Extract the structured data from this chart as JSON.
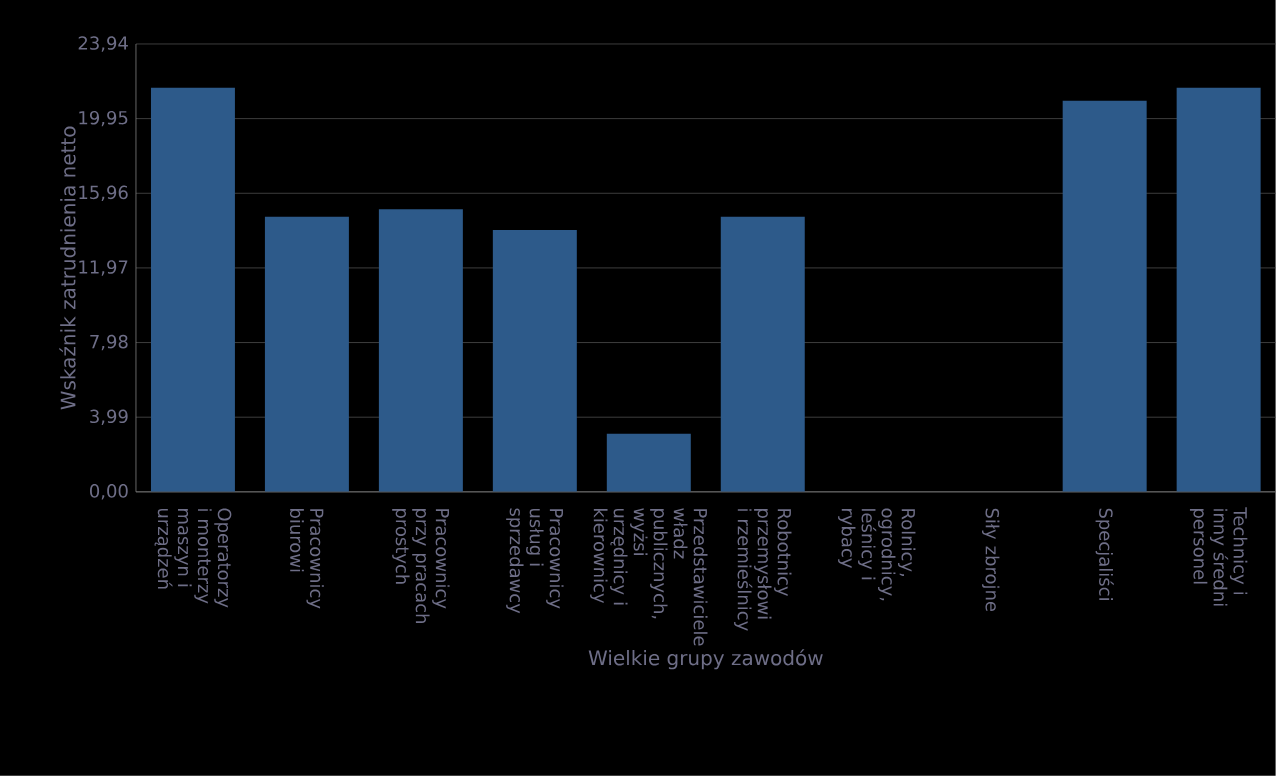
{
  "chart_data": {
    "type": "bar",
    "xlabel": "Wielkie grupy zawodów",
    "ylabel": "Wskaźnik zatrudnienia netto",
    "categories": [
      "Operatorzy i monterzy maszyn i urządzeń",
      "Pracownicy biurowi",
      "Pracownicy przy pracach prostych",
      "Pracownicy usług i sprzedawcy",
      "Przedstawiciele władz publicznych, wyżsi urzędnicy i kierownicy",
      "Robotnicy przemysłowi i rzemieślnicy",
      "Rolnicy, ogrodnicy, leśnicy i rybacy",
      "Siły zbrojne",
      "Specjaliści",
      "Technicy i inny średni personel"
    ],
    "values": [
      21.6,
      14.7,
      15.1,
      14.0,
      3.1,
      14.7,
      0,
      0,
      20.9,
      21.6
    ],
    "color": "#2d5a8a",
    "ylim": [
      0,
      23.94
    ],
    "yticks": [
      {
        "value": 0,
        "label": "0,00"
      },
      {
        "value": 3.99,
        "label": "3,99"
      },
      {
        "value": 7.98,
        "label": "7,98"
      },
      {
        "value": 11.97,
        "label": "11,97"
      },
      {
        "value": 15.96,
        "label": "15,96"
      },
      {
        "value": 19.95,
        "label": "19,95"
      },
      {
        "value": 23.94,
        "label": "23,94"
      }
    ],
    "grid": "y"
  }
}
